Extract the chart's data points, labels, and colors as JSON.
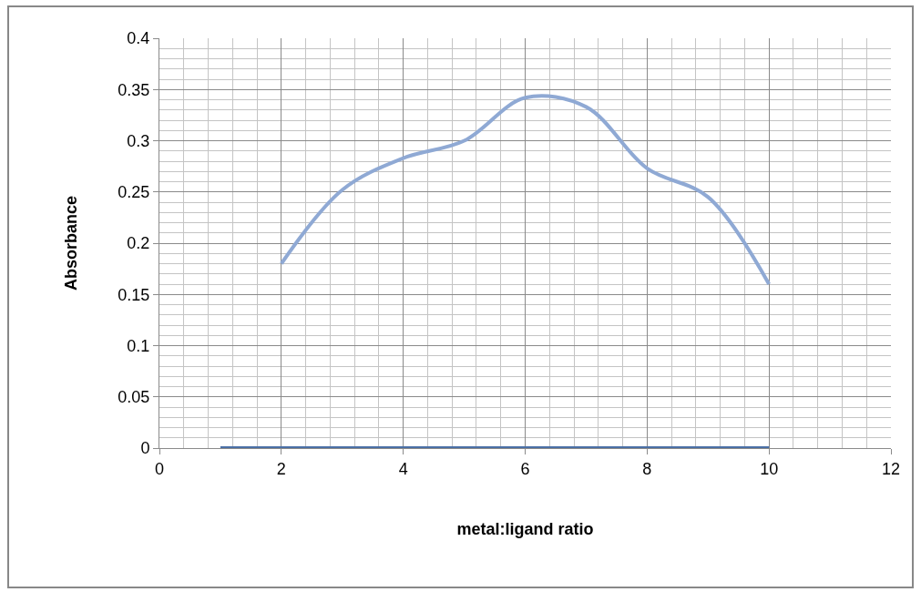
{
  "chart_data": {
    "type": "line",
    "xlabel": "metal:ligand ratio",
    "ylabel": "Absorbance",
    "xlim": [
      0,
      12
    ],
    "xticks": [
      0,
      2,
      4,
      6,
      8,
      10,
      12
    ],
    "ylim": [
      0,
      0.4
    ],
    "yticks": [
      0,
      0.05,
      0.1,
      0.15,
      0.2,
      0.25,
      0.3,
      0.35,
      0.4
    ],
    "series": [
      {
        "color": "#8fa9d4",
        "x": [
          2,
          3,
          4,
          5,
          6,
          7,
          8,
          9,
          10
        ],
        "values": [
          0.18,
          0.252,
          0.283,
          0.3,
          0.342,
          0.333,
          0.273,
          0.245,
          0.16
        ]
      },
      {
        "color": "#4a6fa5",
        "x": [
          1,
          2,
          3,
          4,
          5,
          6,
          7,
          8,
          9,
          10
        ],
        "values": [
          0,
          0,
          0,
          0,
          0,
          0,
          0,
          0,
          0,
          0
        ]
      }
    ],
    "grid": true,
    "marker": "none",
    "line_style": "solid"
  }
}
